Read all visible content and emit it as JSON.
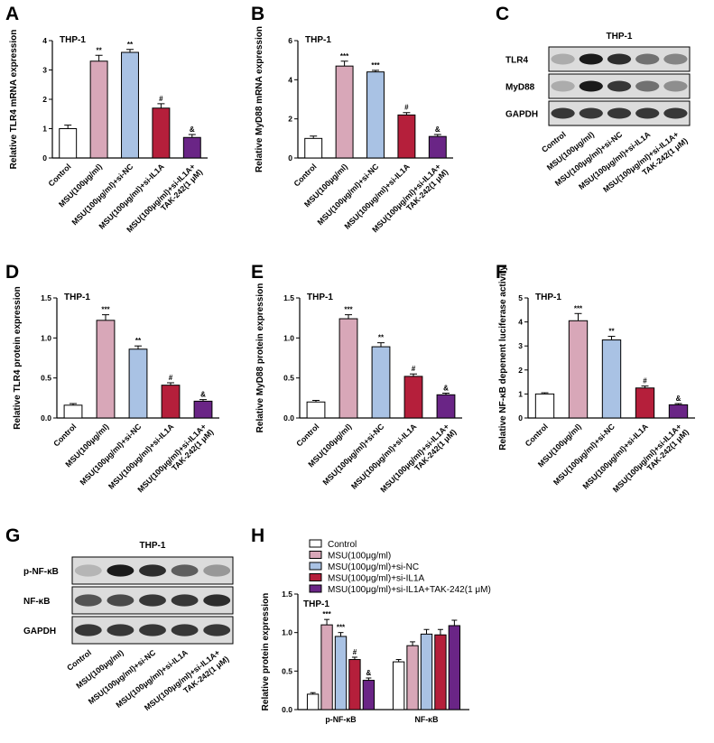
{
  "colors": {
    "control": "#ffffff",
    "msu": "#d8a7b8",
    "msu_sinc": "#a9c2e4",
    "msu_siil1a": "#b51f3b",
    "msu_siil1a_tak": "#6a2586",
    "axis": "#000000",
    "band": "#1a1a1a"
  },
  "categories": [
    "Control",
    "MSU(100μg/ml)",
    "MSU(100μg/ml)+si-NC",
    "MSU(100μg/ml)+si-IL1A",
    "MSU(100μg/ml)+si-IL1A+",
    "TAK-242(1 μM)"
  ],
  "chart_data": [
    {
      "panel": "A",
      "type": "bar",
      "title": "THP-1",
      "ylabel": "Relative TLR4 mRNA expression",
      "categories": [
        "Control",
        "MSU(100μg/ml)",
        "MSU(100μg/ml)+si-NC",
        "MSU(100μg/ml)+si-IL1A",
        "MSU(100μg/ml)+si-IL1A+TAK-242(1 μM)"
      ],
      "values": [
        1.0,
        3.3,
        3.6,
        1.7,
        0.7
      ],
      "errors": [
        0.12,
        0.2,
        0.1,
        0.15,
        0.1
      ],
      "significance": [
        "",
        "**",
        "**",
        "#",
        "&"
      ],
      "ylim": [
        0,
        4
      ],
      "yticks": [
        0,
        1,
        2,
        3,
        4
      ]
    },
    {
      "panel": "B",
      "type": "bar",
      "title": "THP-1",
      "ylabel": "Relative MyD88 mRNA expression",
      "categories": [
        "Control",
        "MSU(100μg/ml)",
        "MSU(100μg/ml)+si-NC",
        "MSU(100μg/ml)+si-IL1A",
        "MSU(100μg/ml)+si-IL1A+TAK-242(1 μM)"
      ],
      "values": [
        1.0,
        4.7,
        4.4,
        2.2,
        1.1
      ],
      "errors": [
        0.12,
        0.25,
        0.08,
        0.12,
        0.1
      ],
      "significance": [
        "",
        "***",
        "***",
        "#",
        "&"
      ],
      "ylim": [
        0,
        6
      ],
      "yticks": [
        0,
        2,
        4,
        6
      ]
    },
    {
      "panel": "D",
      "type": "bar",
      "title": "THP-1",
      "ylabel": "Relative TLR4 protein expression",
      "categories": [
        "Control",
        "MSU(100μg/ml)",
        "MSU(100μg/ml)+si-NC",
        "MSU(100μg/ml)+si-IL1A",
        "MSU(100μg/ml)+si-IL1A+TAK-242(1 μM)"
      ],
      "values": [
        0.16,
        1.22,
        0.86,
        0.41,
        0.21
      ],
      "errors": [
        0.02,
        0.07,
        0.04,
        0.03,
        0.02
      ],
      "significance": [
        "",
        "***",
        "**",
        "#",
        "&"
      ],
      "ylim": [
        0,
        1.5
      ],
      "yticks": [
        "0.0",
        "0.5",
        "1.0",
        "1.5"
      ]
    },
    {
      "panel": "E",
      "type": "bar",
      "title": "THP-1",
      "ylabel": "Relative MyD88 protein expression",
      "categories": [
        "Control",
        "MSU(100μg/ml)",
        "MSU(100μg/ml)+si-NC",
        "MSU(100μg/ml)+si-IL1A",
        "MSU(100μg/ml)+si-IL1A+TAK-242(1 μM)"
      ],
      "values": [
        0.2,
        1.24,
        0.89,
        0.52,
        0.29
      ],
      "errors": [
        0.02,
        0.05,
        0.05,
        0.03,
        0.02
      ],
      "significance": [
        "",
        "***",
        "**",
        "#",
        "&"
      ],
      "ylim": [
        0,
        1.5
      ],
      "yticks": [
        "0.0",
        "0.5",
        "1.0",
        "1.5"
      ]
    },
    {
      "panel": "F",
      "type": "bar",
      "title": "THP-1",
      "ylabel": "Relative NF-κB depenent luciferase activity",
      "categories": [
        "Control",
        "MSU(100μg/ml)",
        "MSU(100μg/ml)+si-NC",
        "MSU(100μg/ml)+si-IL1A",
        "MSU(100μg/ml)+si-IL1A+TAK-242(1 μM)"
      ],
      "values": [
        1.0,
        4.05,
        3.25,
        1.25,
        0.55
      ],
      "errors": [
        0.05,
        0.3,
        0.15,
        0.08,
        0.05
      ],
      "significance": [
        "",
        "***",
        "**",
        "#",
        "&"
      ],
      "ylim": [
        0,
        5
      ],
      "yticks": [
        0,
        1,
        2,
        3,
        4,
        5
      ]
    },
    {
      "panel": "H",
      "type": "grouped_bar",
      "title": "THP-1",
      "ylabel": "Relative protein expression",
      "groups": [
        "p-NF-κB",
        "NF-κB"
      ],
      "series": [
        {
          "name": "Control",
          "values": [
            0.2,
            0.62
          ],
          "errors": [
            0.02,
            0.03
          ]
        },
        {
          "name": "MSU(100μg/ml)",
          "values": [
            1.1,
            0.83
          ],
          "errors": [
            0.07,
            0.05
          ]
        },
        {
          "name": "MSU(100μg/ml)+si-NC",
          "values": [
            0.95,
            0.98
          ],
          "errors": [
            0.05,
            0.06
          ]
        },
        {
          "name": "MSU(100μg/ml)+si-IL1A",
          "values": [
            0.65,
            0.97
          ],
          "errors": [
            0.03,
            0.07
          ]
        },
        {
          "name": "MSU(100μg/ml)+si-IL1A+TAK-242(1 μM)",
          "values": [
            0.38,
            1.09
          ],
          "errors": [
            0.03,
            0.07
          ]
        }
      ],
      "significance": [
        "***",
        "***",
        "#",
        "&"
      ],
      "ylim": [
        0,
        1.5
      ],
      "yticks": [
        "0.0",
        "0.5",
        "1.0",
        "1.5"
      ]
    }
  ],
  "blots": {
    "C": {
      "title": "THP-1",
      "rows": [
        {
          "label": "TLR4",
          "intensities": [
            0.25,
            1.0,
            0.9,
            0.55,
            0.45
          ]
        },
        {
          "label": "MyD88",
          "intensities": [
            0.25,
            1.0,
            0.85,
            0.55,
            0.4
          ]
        },
        {
          "label": "GAPDH",
          "intensities": [
            0.85,
            0.85,
            0.85,
            0.85,
            0.85
          ]
        }
      ]
    },
    "G": {
      "title": "THP-1",
      "rows": [
        {
          "label": "p-NF-κB",
          "intensities": [
            0.2,
            1.0,
            0.9,
            0.65,
            0.35
          ]
        },
        {
          "label": "NF-κB",
          "intensities": [
            0.7,
            0.75,
            0.85,
            0.85,
            0.9
          ]
        },
        {
          "label": "GAPDH",
          "intensities": [
            0.85,
            0.85,
            0.85,
            0.85,
            0.85
          ]
        }
      ]
    }
  },
  "panel_letters": [
    "A",
    "B",
    "C",
    "D",
    "E",
    "F",
    "G",
    "H"
  ]
}
